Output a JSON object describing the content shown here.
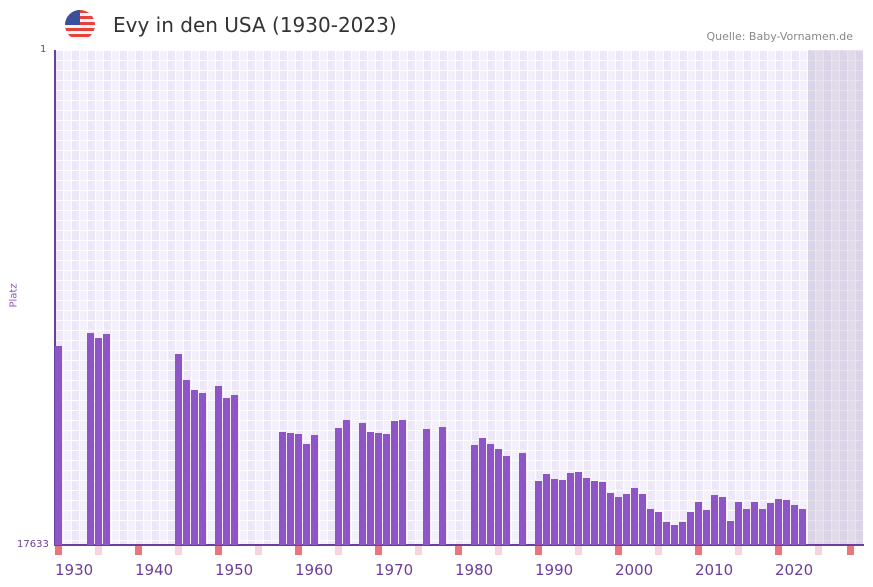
{
  "header": {
    "title": "Evy in den USA (1930-2023)",
    "source": "Quelle: Baby-Vornamen.de",
    "flag_icon": "us-flag-icon"
  },
  "colors": {
    "bar": "#8e55c6",
    "axis": "#6b3fa0",
    "decade_marker": "#e8767a",
    "half_marker": "#f5d5dc"
  },
  "chart_data": {
    "type": "bar",
    "title": "Evy in den USA (1930-2023)",
    "xlabel": "",
    "ylabel": "Platz",
    "y_ticks": [
      "1",
      "17633"
    ],
    "ylim": [
      17633,
      1
    ],
    "xlim": [
      1930,
      2030
    ],
    "x_ticks": [
      "1930",
      "1940",
      "1950",
      "1960",
      "1970",
      "1980",
      "1990",
      "2000",
      "2010",
      "2020"
    ],
    "series": [
      {
        "name": "Platz",
        "points": [
          [
            1930,
            10545
          ],
          [
            1934,
            10080
          ],
          [
            1935,
            10259
          ],
          [
            1936,
            10116
          ],
          [
            1945,
            10829
          ],
          [
            1946,
            11755
          ],
          [
            1947,
            12111
          ],
          [
            1948,
            12218
          ],
          [
            1950,
            11968
          ],
          [
            1951,
            12396
          ],
          [
            1952,
            12289
          ],
          [
            1958,
            13607
          ],
          [
            1959,
            13643
          ],
          [
            1960,
            13678
          ],
          [
            1961,
            14034
          ],
          [
            1962,
            13714
          ],
          [
            1965,
            13465
          ],
          [
            1966,
            13180
          ],
          [
            1968,
            13286
          ],
          [
            1969,
            13607
          ],
          [
            1970,
            13643
          ],
          [
            1971,
            13678
          ],
          [
            1972,
            13215
          ],
          [
            1973,
            13180
          ],
          [
            1976,
            13500
          ],
          [
            1978,
            13429
          ],
          [
            1982,
            14070
          ],
          [
            1983,
            13821
          ],
          [
            1984,
            14034
          ],
          [
            1985,
            14212
          ],
          [
            1986,
            14462
          ],
          [
            1988,
            14355
          ],
          [
            1990,
            15352
          ],
          [
            1991,
            15103
          ],
          [
            1992,
            15281
          ],
          [
            1993,
            15317
          ],
          [
            1994,
            15068
          ],
          [
            1995,
            15032
          ],
          [
            1996,
            15246
          ],
          [
            1997,
            15352
          ],
          [
            1998,
            15388
          ],
          [
            1999,
            15780
          ],
          [
            2000,
            15922
          ],
          [
            2001,
            15815
          ],
          [
            2002,
            15602
          ],
          [
            2003,
            15815
          ],
          [
            2004,
            16350
          ],
          [
            2005,
            16457
          ],
          [
            2006,
            16813
          ],
          [
            2007,
            16920
          ],
          [
            2008,
            16813
          ],
          [
            2009,
            16457
          ],
          [
            2010,
            16101
          ],
          [
            2011,
            16386
          ],
          [
            2012,
            15851
          ],
          [
            2013,
            15922
          ],
          [
            2014,
            16778
          ],
          [
            2015,
            16101
          ],
          [
            2016,
            16350
          ],
          [
            2017,
            16101
          ],
          [
            2018,
            16350
          ],
          [
            2019,
            16137
          ],
          [
            2020,
            15994
          ],
          [
            2021,
            16030
          ],
          [
            2022,
            16208
          ],
          [
            2023,
            16350
          ]
        ]
      }
    ]
  }
}
